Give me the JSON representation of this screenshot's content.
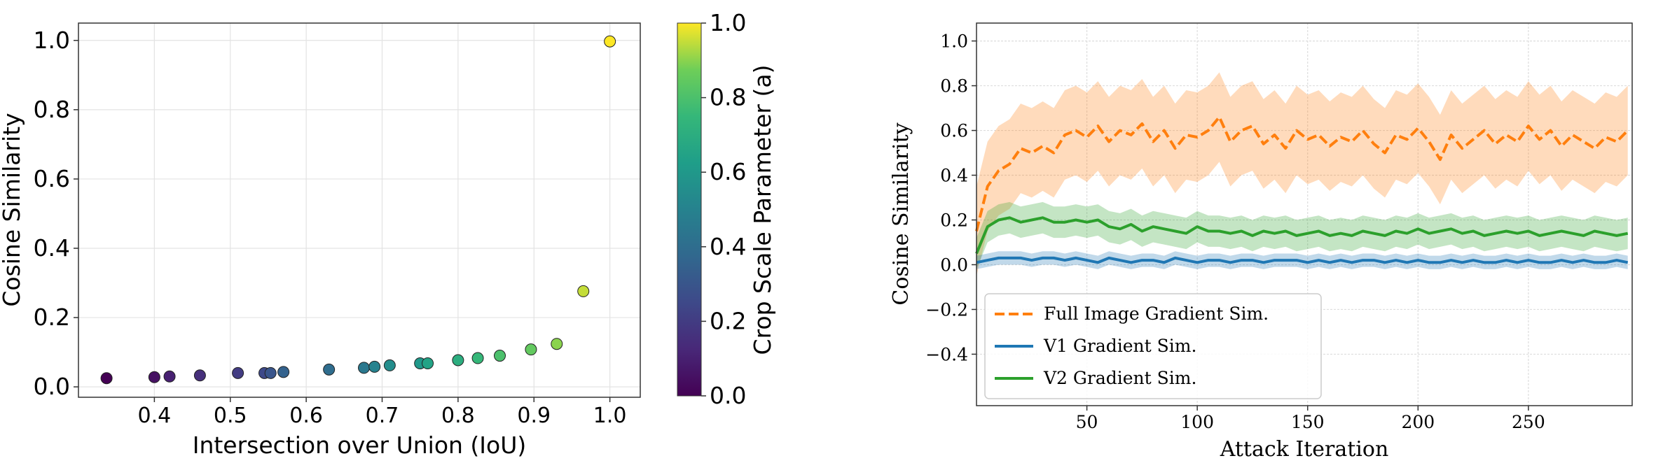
{
  "chart_data": [
    {
      "type": "scatter",
      "title": "",
      "xlabel": "Intersection over Union (IoU)",
      "ylabel": "Cosine Similarity",
      "xlim": [
        0.3,
        1.04
      ],
      "ylim": [
        -0.03,
        1.05
      ],
      "xticks": [
        0.4,
        0.5,
        0.6,
        0.7,
        0.8,
        0.9,
        1.0
      ],
      "xtick_labels": [
        "0.4",
        "0.5",
        "0.6",
        "0.7",
        "0.8",
        "0.9",
        "1.0"
      ],
      "yticks": [
        0.0,
        0.2,
        0.4,
        0.6,
        0.8,
        1.0
      ],
      "ytick_labels": [
        "0.0",
        "0.2",
        "0.4",
        "0.6",
        "0.8",
        "1.0"
      ],
      "grid": true,
      "colormap": "viridis",
      "colorbar": {
        "label": "Crop Scale Parameter (a)",
        "range": [
          0.0,
          1.0
        ],
        "ticks": [
          0.0,
          0.2,
          0.4,
          0.6,
          0.8,
          1.0
        ],
        "tick_labels": [
          "0.0",
          "0.2",
          "0.4",
          "0.6",
          "0.8",
          "1.0"
        ]
      },
      "points": {
        "x": [
          0.337,
          0.4,
          0.42,
          0.46,
          0.51,
          0.545,
          0.553,
          0.57,
          0.63,
          0.676,
          0.69,
          0.71,
          0.75,
          0.76,
          0.8,
          0.826,
          0.855,
          0.896,
          0.93,
          0.965,
          1.0
        ],
        "y": [
          0.025,
          0.028,
          0.03,
          0.033,
          0.04,
          0.04,
          0.04,
          0.043,
          0.05,
          0.055,
          0.058,
          0.062,
          0.068,
          0.068,
          0.077,
          0.083,
          0.09,
          0.108,
          0.124,
          0.276,
          0.997
        ],
        "a": [
          0.0,
          0.05,
          0.1,
          0.15,
          0.2,
          0.25,
          0.3,
          0.35,
          0.4,
          0.45,
          0.5,
          0.55,
          0.6,
          0.65,
          0.7,
          0.75,
          0.8,
          0.85,
          0.9,
          0.95,
          1.0
        ]
      }
    },
    {
      "type": "line",
      "title": "",
      "xlabel": "Attack Iteration",
      "ylabel": "Cosine Similarity",
      "xlim": [
        0,
        297
      ],
      "ylim": [
        -0.63,
        1.08
      ],
      "xticks": [
        50,
        100,
        150,
        200,
        250
      ],
      "xtick_labels": [
        "50",
        "100",
        "150",
        "200",
        "250"
      ],
      "yticks": [
        -0.4,
        -0.2,
        0.0,
        0.2,
        0.4,
        0.6,
        0.8,
        1.0
      ],
      "ytick_labels": [
        "−0.4",
        "−0.2",
        "0.0",
        "0.2",
        "0.4",
        "0.6",
        "0.8",
        "1.0"
      ],
      "grid": true,
      "legend_position": "lower-left",
      "x": [
        0,
        5,
        10,
        15,
        20,
        25,
        30,
        35,
        40,
        45,
        50,
        55,
        60,
        65,
        70,
        75,
        80,
        85,
        90,
        95,
        100,
        105,
        110,
        115,
        120,
        125,
        130,
        135,
        140,
        145,
        150,
        155,
        160,
        165,
        170,
        175,
        180,
        185,
        190,
        195,
        200,
        205,
        210,
        215,
        220,
        225,
        230,
        235,
        240,
        245,
        250,
        255,
        260,
        265,
        270,
        275,
        280,
        285,
        290,
        295
      ],
      "series": [
        {
          "name": "Full Image Gradient Sim.",
          "color": "#ff7f0e",
          "style": "dashed",
          "band_halfwidth": 0.2,
          "values": [
            0.15,
            0.35,
            0.42,
            0.45,
            0.52,
            0.5,
            0.53,
            0.5,
            0.58,
            0.6,
            0.57,
            0.62,
            0.55,
            0.6,
            0.58,
            0.63,
            0.55,
            0.6,
            0.52,
            0.58,
            0.57,
            0.6,
            0.66,
            0.55,
            0.6,
            0.62,
            0.54,
            0.58,
            0.52,
            0.6,
            0.56,
            0.58,
            0.53,
            0.57,
            0.55,
            0.6,
            0.54,
            0.5,
            0.58,
            0.56,
            0.61,
            0.55,
            0.47,
            0.58,
            0.52,
            0.56,
            0.6,
            0.54,
            0.58,
            0.55,
            0.62,
            0.56,
            0.6,
            0.53,
            0.58,
            0.55,
            0.52,
            0.57,
            0.55,
            0.6
          ]
        },
        {
          "name": "V1 Gradient Sim.",
          "color": "#1f77b4",
          "style": "solid",
          "band_halfwidth": 0.03,
          "values": [
            0.01,
            0.02,
            0.03,
            0.03,
            0.03,
            0.02,
            0.03,
            0.03,
            0.02,
            0.03,
            0.02,
            0.01,
            0.03,
            0.02,
            0.01,
            0.02,
            0.02,
            0.01,
            0.03,
            0.02,
            0.01,
            0.02,
            0.02,
            0.01,
            0.02,
            0.02,
            0.01,
            0.02,
            0.02,
            0.02,
            0.01,
            0.02,
            0.01,
            0.02,
            0.01,
            0.02,
            0.02,
            0.01,
            0.02,
            0.01,
            0.02,
            0.01,
            0.01,
            0.02,
            0.01,
            0.02,
            0.01,
            0.01,
            0.02,
            0.01,
            0.02,
            0.01,
            0.01,
            0.02,
            0.01,
            0.02,
            0.01,
            0.01,
            0.02,
            0.01
          ]
        },
        {
          "name": "V2 Gradient Sim.",
          "color": "#2ca02c",
          "style": "solid",
          "band_halfwidth": 0.07,
          "values": [
            0.05,
            0.17,
            0.2,
            0.21,
            0.19,
            0.2,
            0.21,
            0.19,
            0.19,
            0.2,
            0.19,
            0.2,
            0.17,
            0.16,
            0.18,
            0.15,
            0.17,
            0.16,
            0.15,
            0.14,
            0.17,
            0.15,
            0.15,
            0.14,
            0.15,
            0.13,
            0.15,
            0.14,
            0.15,
            0.13,
            0.14,
            0.15,
            0.13,
            0.14,
            0.13,
            0.15,
            0.14,
            0.13,
            0.15,
            0.14,
            0.16,
            0.14,
            0.15,
            0.16,
            0.14,
            0.15,
            0.13,
            0.14,
            0.15,
            0.14,
            0.15,
            0.13,
            0.14,
            0.15,
            0.14,
            0.13,
            0.15,
            0.14,
            0.13,
            0.14
          ]
        }
      ]
    }
  ]
}
